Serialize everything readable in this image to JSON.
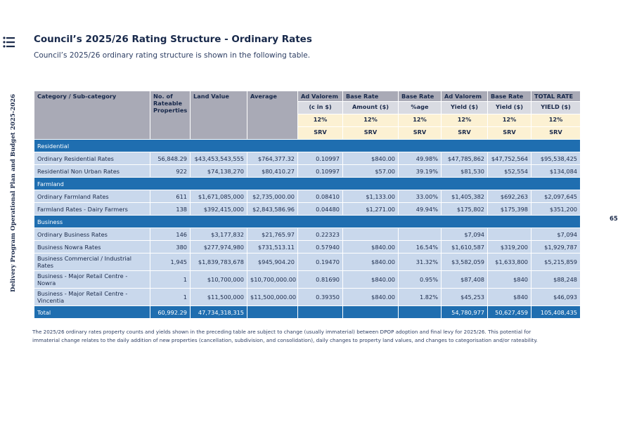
{
  "sidebar": "Delivery Program Operational Plan and Budget 2025-2026",
  "page_number": "65",
  "header": {
    "title": "Council’s 2025/26 Rating Structure - Ordinary Rates",
    "subtitle": "Council’s 2025/26 ordinary rating structure is shown in the following table."
  },
  "table": {
    "header_rows": [
      [
        "Category / Sub-category",
        "No. of Rateable Properties",
        "Land Value",
        "Average",
        "Ad Valorem",
        "Base Rate",
        "Base Rate",
        "Ad Valorem",
        "Base Rate",
        "TOTAL RATE"
      ],
      [
        "(c in $)",
        "Amount ($)",
        "%age",
        "Yield ($)",
        "Yield ($)",
        "YIELD ($)"
      ],
      [
        "12%",
        "12%",
        "12%",
        "12%",
        "12%",
        "12%"
      ],
      [
        "SRV",
        "SRV",
        "SRV",
        "SRV",
        "SRV",
        "SRV"
      ]
    ],
    "rows": [
      {
        "section": "Residential"
      },
      {
        "cells": [
          "Ordinary Residential Rates",
          "56,848.29",
          "$43,453,543,555",
          "$764,377.32",
          "0.10997",
          "$840.00",
          "49.98%",
          "$47,785,862",
          "$47,752,564",
          "$95,538,425"
        ]
      },
      {
        "cells": [
          "Residential Non Urban Rates",
          "922",
          "$74,138,270",
          "$80,410.27",
          "0.10997",
          "$57.00",
          "39.19%",
          "$81,530",
          "$52,554",
          "$134,084"
        ]
      },
      {
        "section": "Farmland"
      },
      {
        "cells": [
          "Ordinary Farmland Rates",
          "611",
          "$1,671,085,000",
          "$2,735,000.00",
          "0.08410",
          "$1,133.00",
          "33.00%",
          "$1,405,382",
          "$692,263",
          "$2,097,645"
        ]
      },
      {
        "cells": [
          "Farmland Rates - Dairy Farmers",
          "138",
          "$392,415,000",
          "$2,843,586.96",
          "0.04480",
          "$1,271.00",
          "49.94%",
          "$175,802",
          "$175,398",
          "$351,200"
        ]
      },
      {
        "section": "Business"
      },
      {
        "cells": [
          "Ordinary Business Rates",
          "146",
          "$3,177,832",
          "$21,765.97",
          "0.22323",
          null,
          null,
          "$7,094",
          null,
          "$7,094"
        ]
      },
      {
        "cells": [
          "Business Nowra Rates",
          "380",
          "$277,974,980",
          "$731,513.11",
          "0.57940",
          "$840.00",
          "16.54%",
          "$1,610,587",
          "$319,200",
          "$1,929,787"
        ]
      },
      {
        "cells": [
          "Business Commercial / Industrial Rates",
          "1,945",
          "$1,839,783,678",
          "$945,904.20",
          "0.19470",
          "$840.00",
          "31.32%",
          "$3,582,059",
          "$1,633,800",
          "$5,215,859"
        ]
      },
      {
        "cells": [
          "Business - Major Retail Centre - Nowra",
          "1",
          "$10,700,000",
          "$10,700,000.00",
          "0.81690",
          "$840.00",
          "0.95%",
          "$87,408",
          "$840",
          "$88,248"
        ]
      },
      {
        "cells": [
          "Business - Major Retail Centre - Vincentia",
          "1",
          "$11,500,000",
          "$11,500,000.00",
          "0.39350",
          "$840.00",
          "1.82%",
          "$45,253",
          "$840",
          "$46,093"
        ]
      }
    ],
    "total": [
      "Total",
      "60,992.29",
      "47,734,318,315",
      null,
      null,
      null,
      null,
      "54,780,977",
      "50,627,459",
      "105,408,435"
    ]
  },
  "footnote": "The 2025/26 ordinary rates property counts and yields shown in the preceding table are subject to change (usually immaterial) between DPOP adoption and final levy for 2025/26. This potential for immaterial change relates to the daily addition of new properties (cancellation, subdivision, and consolidation), daily changes to property land values, and changes to categorisation and/or rateability."
}
